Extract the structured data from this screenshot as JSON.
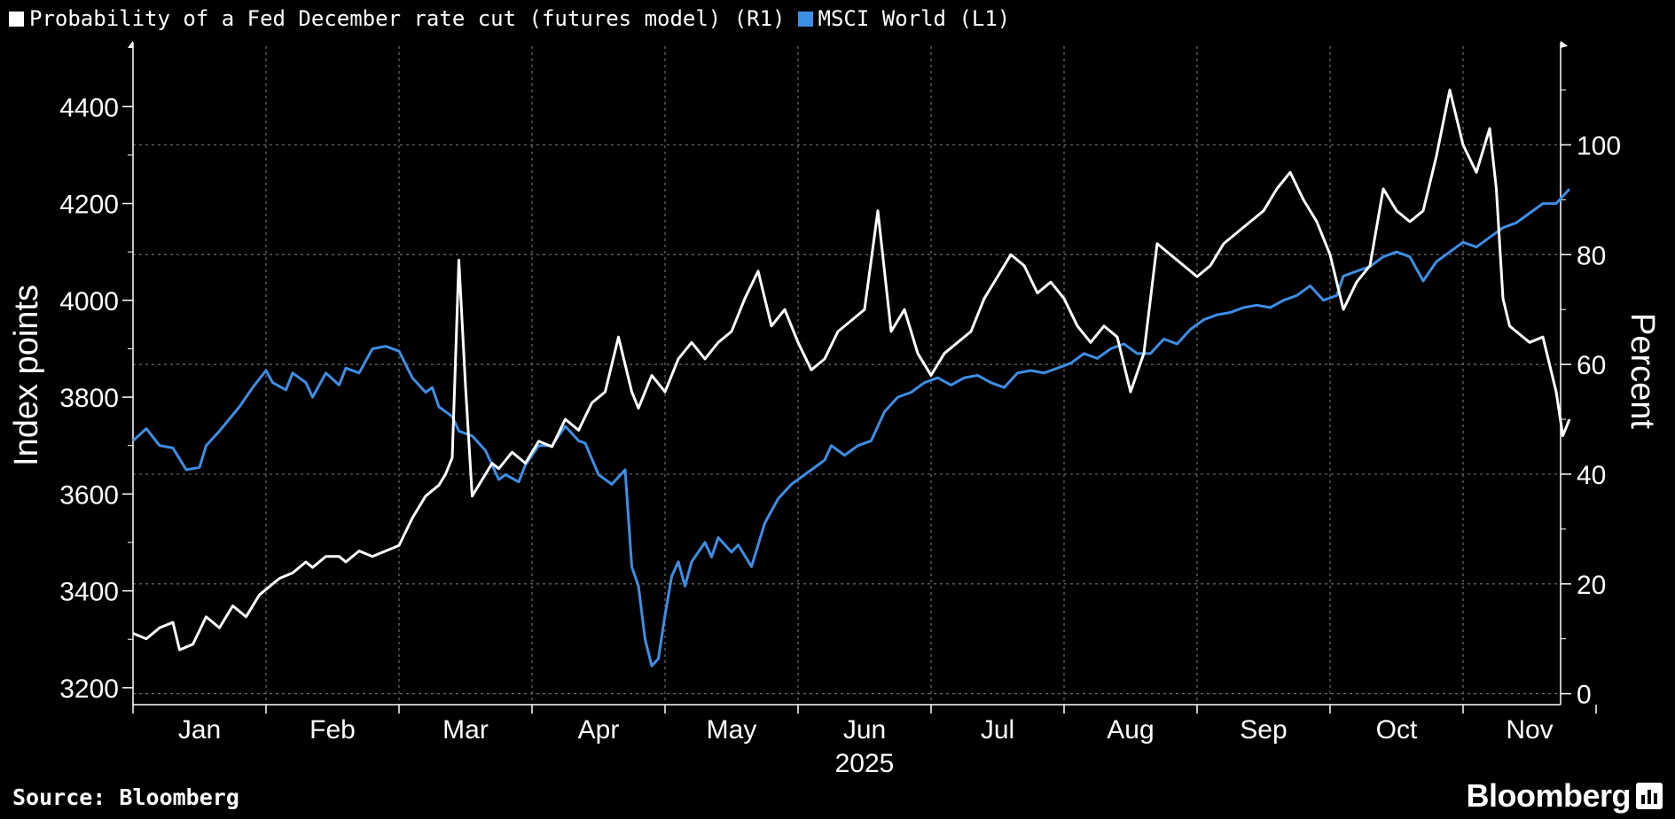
{
  "legend": [
    {
      "label": "Probability of a Fed December rate cut (futures model) (R1)",
      "color": "#ffffff"
    },
    {
      "label": "MSCI World (L1)",
      "color": "#3d8ee6"
    }
  ],
  "footer": {
    "source": "Source: Bloomberg",
    "brand": "Bloomberg"
  },
  "chart_data": {
    "type": "line",
    "title": "",
    "year_label": "2025",
    "x_categories": [
      "Jan",
      "Feb",
      "Mar",
      "Apr",
      "May",
      "Jun",
      "Jul",
      "Aug",
      "Sep",
      "Oct",
      "Nov"
    ],
    "x_range_months": [
      0,
      10.8
    ],
    "left_axis": {
      "label": "Index points",
      "ticks": [
        3200,
        3400,
        3600,
        3800,
        4000,
        4200,
        4400
      ],
      "range": [
        3165,
        4525
      ]
    },
    "right_axis": {
      "label": "Percent",
      "ticks": [
        0,
        20,
        40,
        60,
        80,
        100
      ],
      "range": [
        -2,
        118
      ]
    },
    "series": [
      {
        "name": "MSCI World (L1)",
        "axis": "left",
        "color": "#3d8ee6",
        "points": [
          [
            0.0,
            3710
          ],
          [
            0.1,
            3735
          ],
          [
            0.2,
            3700
          ],
          [
            0.3,
            3695
          ],
          [
            0.4,
            3650
          ],
          [
            0.5,
            3655
          ],
          [
            0.55,
            3700
          ],
          [
            0.65,
            3730
          ],
          [
            0.8,
            3780
          ],
          [
            0.9,
            3820
          ],
          [
            1.0,
            3855
          ],
          [
            1.05,
            3830
          ],
          [
            1.15,
            3815
          ],
          [
            1.2,
            3850
          ],
          [
            1.3,
            3830
          ],
          [
            1.35,
            3800
          ],
          [
            1.45,
            3850
          ],
          [
            1.55,
            3825
          ],
          [
            1.6,
            3860
          ],
          [
            1.7,
            3850
          ],
          [
            1.8,
            3900
          ],
          [
            1.9,
            3905
          ],
          [
            2.0,
            3895
          ],
          [
            2.1,
            3840
          ],
          [
            2.2,
            3810
          ],
          [
            2.25,
            3820
          ],
          [
            2.3,
            3780
          ],
          [
            2.4,
            3760
          ],
          [
            2.45,
            3730
          ],
          [
            2.55,
            3720
          ],
          [
            2.65,
            3690
          ],
          [
            2.75,
            3630
          ],
          [
            2.8,
            3640
          ],
          [
            2.9,
            3625
          ],
          [
            2.95,
            3660
          ],
          [
            3.05,
            3700
          ],
          [
            3.15,
            3700
          ],
          [
            3.2,
            3720
          ],
          [
            3.25,
            3740
          ],
          [
            3.35,
            3710
          ],
          [
            3.4,
            3705
          ],
          [
            3.5,
            3640
          ],
          [
            3.6,
            3620
          ],
          [
            3.7,
            3650
          ],
          [
            3.75,
            3450
          ],
          [
            3.8,
            3410
          ],
          [
            3.85,
            3300
          ],
          [
            3.9,
            3245
          ],
          [
            3.95,
            3260
          ],
          [
            4.0,
            3350
          ],
          [
            4.05,
            3430
          ],
          [
            4.1,
            3460
          ],
          [
            4.15,
            3410
          ],
          [
            4.2,
            3460
          ],
          [
            4.3,
            3500
          ],
          [
            4.35,
            3470
          ],
          [
            4.4,
            3510
          ],
          [
            4.5,
            3480
          ],
          [
            4.55,
            3495
          ],
          [
            4.65,
            3450
          ],
          [
            4.75,
            3540
          ],
          [
            4.85,
            3590
          ],
          [
            4.95,
            3620
          ],
          [
            5.05,
            3640
          ],
          [
            5.15,
            3660
          ],
          [
            5.2,
            3670
          ],
          [
            5.25,
            3700
          ],
          [
            5.35,
            3680
          ],
          [
            5.45,
            3700
          ],
          [
            5.55,
            3710
          ],
          [
            5.65,
            3770
          ],
          [
            5.75,
            3800
          ],
          [
            5.85,
            3810
          ],
          [
            5.95,
            3830
          ],
          [
            6.05,
            3840
          ],
          [
            6.15,
            3825
          ],
          [
            6.25,
            3840
          ],
          [
            6.35,
            3845
          ],
          [
            6.45,
            3830
          ],
          [
            6.55,
            3820
          ],
          [
            6.65,
            3850
          ],
          [
            6.75,
            3855
          ],
          [
            6.85,
            3850
          ],
          [
            6.95,
            3860
          ],
          [
            7.05,
            3870
          ],
          [
            7.15,
            3890
          ],
          [
            7.25,
            3880
          ],
          [
            7.35,
            3900
          ],
          [
            7.45,
            3910
          ],
          [
            7.55,
            3890
          ],
          [
            7.65,
            3890
          ],
          [
            7.75,
            3920
          ],
          [
            7.85,
            3910
          ],
          [
            7.95,
            3940
          ],
          [
            8.05,
            3960
          ],
          [
            8.15,
            3970
          ],
          [
            8.25,
            3975
          ],
          [
            8.35,
            3985
          ],
          [
            8.45,
            3990
          ],
          [
            8.55,
            3985
          ],
          [
            8.65,
            4000
          ],
          [
            8.75,
            4010
          ],
          [
            8.85,
            4030
          ],
          [
            8.95,
            4000
          ],
          [
            9.05,
            4010
          ],
          [
            9.1,
            4050
          ],
          [
            9.2,
            4060
          ],
          [
            9.3,
            4070
          ],
          [
            9.4,
            4090
          ],
          [
            9.5,
            4100
          ],
          [
            9.6,
            4090
          ],
          [
            9.7,
            4040
          ],
          [
            9.8,
            4080
          ],
          [
            9.9,
            4100
          ],
          [
            10.0,
            4120
          ],
          [
            10.1,
            4110
          ],
          [
            10.2,
            4130
          ],
          [
            10.3,
            4150
          ],
          [
            10.4,
            4160
          ],
          [
            10.5,
            4180
          ],
          [
            10.6,
            4200
          ],
          [
            10.7,
            4200
          ],
          [
            10.8,
            4230
          ]
        ]
      },
      {
        "name": "Probability of a Fed December rate cut (futures model) (R1)",
        "axis": "right",
        "color": "#ffffff",
        "points": [
          [
            0.0,
            11
          ],
          [
            0.1,
            10
          ],
          [
            0.2,
            12
          ],
          [
            0.3,
            13
          ],
          [
            0.35,
            8
          ],
          [
            0.45,
            9
          ],
          [
            0.55,
            14
          ],
          [
            0.65,
            12
          ],
          [
            0.75,
            16
          ],
          [
            0.85,
            14
          ],
          [
            0.95,
            18
          ],
          [
            1.05,
            20
          ],
          [
            1.1,
            21
          ],
          [
            1.2,
            22
          ],
          [
            1.3,
            24
          ],
          [
            1.35,
            23
          ],
          [
            1.45,
            25
          ],
          [
            1.55,
            25
          ],
          [
            1.6,
            24
          ],
          [
            1.7,
            26
          ],
          [
            1.8,
            25
          ],
          [
            1.9,
            26
          ],
          [
            2.0,
            27
          ],
          [
            2.1,
            32
          ],
          [
            2.2,
            36
          ],
          [
            2.3,
            38
          ],
          [
            2.35,
            40
          ],
          [
            2.4,
            43
          ],
          [
            2.45,
            79
          ],
          [
            2.5,
            56
          ],
          [
            2.55,
            36
          ],
          [
            2.6,
            38
          ],
          [
            2.7,
            42
          ],
          [
            2.75,
            41
          ],
          [
            2.85,
            44
          ],
          [
            2.95,
            42
          ],
          [
            3.05,
            46
          ],
          [
            3.15,
            45
          ],
          [
            3.25,
            50
          ],
          [
            3.35,
            48
          ],
          [
            3.45,
            53
          ],
          [
            3.55,
            55
          ],
          [
            3.65,
            65
          ],
          [
            3.75,
            55
          ],
          [
            3.8,
            52
          ],
          [
            3.9,
            58
          ],
          [
            4.0,
            55
          ],
          [
            4.1,
            61
          ],
          [
            4.2,
            64
          ],
          [
            4.3,
            61
          ],
          [
            4.4,
            64
          ],
          [
            4.5,
            66
          ],
          [
            4.6,
            72
          ],
          [
            4.7,
            77
          ],
          [
            4.8,
            67
          ],
          [
            4.9,
            70
          ],
          [
            5.0,
            64
          ],
          [
            5.1,
            59
          ],
          [
            5.2,
            61
          ],
          [
            5.3,
            66
          ],
          [
            5.4,
            68
          ],
          [
            5.5,
            70
          ],
          [
            5.6,
            88
          ],
          [
            5.7,
            66
          ],
          [
            5.8,
            70
          ],
          [
            5.9,
            62
          ],
          [
            6.0,
            58
          ],
          [
            6.1,
            62
          ],
          [
            6.2,
            64
          ],
          [
            6.3,
            66
          ],
          [
            6.4,
            72
          ],
          [
            6.5,
            76
          ],
          [
            6.6,
            80
          ],
          [
            6.7,
            78
          ],
          [
            6.8,
            73
          ],
          [
            6.9,
            75
          ],
          [
            7.0,
            72
          ],
          [
            7.1,
            67
          ],
          [
            7.2,
            64
          ],
          [
            7.3,
            67
          ],
          [
            7.4,
            65
          ],
          [
            7.5,
            55
          ],
          [
            7.6,
            62
          ],
          [
            7.7,
            82
          ],
          [
            7.8,
            80
          ],
          [
            7.9,
            78
          ],
          [
            8.0,
            76
          ],
          [
            8.1,
            78
          ],
          [
            8.2,
            82
          ],
          [
            8.3,
            84
          ],
          [
            8.4,
            86
          ],
          [
            8.5,
            88
          ],
          [
            8.6,
            92
          ],
          [
            8.7,
            95
          ],
          [
            8.8,
            90
          ],
          [
            8.9,
            86
          ],
          [
            9.0,
            80
          ],
          [
            9.1,
            70
          ],
          [
            9.2,
            75
          ],
          [
            9.3,
            78
          ],
          [
            9.4,
            92
          ],
          [
            9.5,
            88
          ],
          [
            9.6,
            86
          ],
          [
            9.7,
            88
          ],
          [
            9.8,
            98
          ],
          [
            9.9,
            110
          ],
          [
            10.0,
            100
          ],
          [
            10.1,
            95
          ],
          [
            10.2,
            103
          ],
          [
            10.25,
            92
          ],
          [
            10.3,
            72
          ],
          [
            10.35,
            67
          ],
          [
            10.4,
            66
          ],
          [
            10.5,
            64
          ],
          [
            10.6,
            65
          ],
          [
            10.7,
            55
          ],
          [
            10.75,
            47
          ],
          [
            10.8,
            50
          ]
        ]
      }
    ]
  }
}
